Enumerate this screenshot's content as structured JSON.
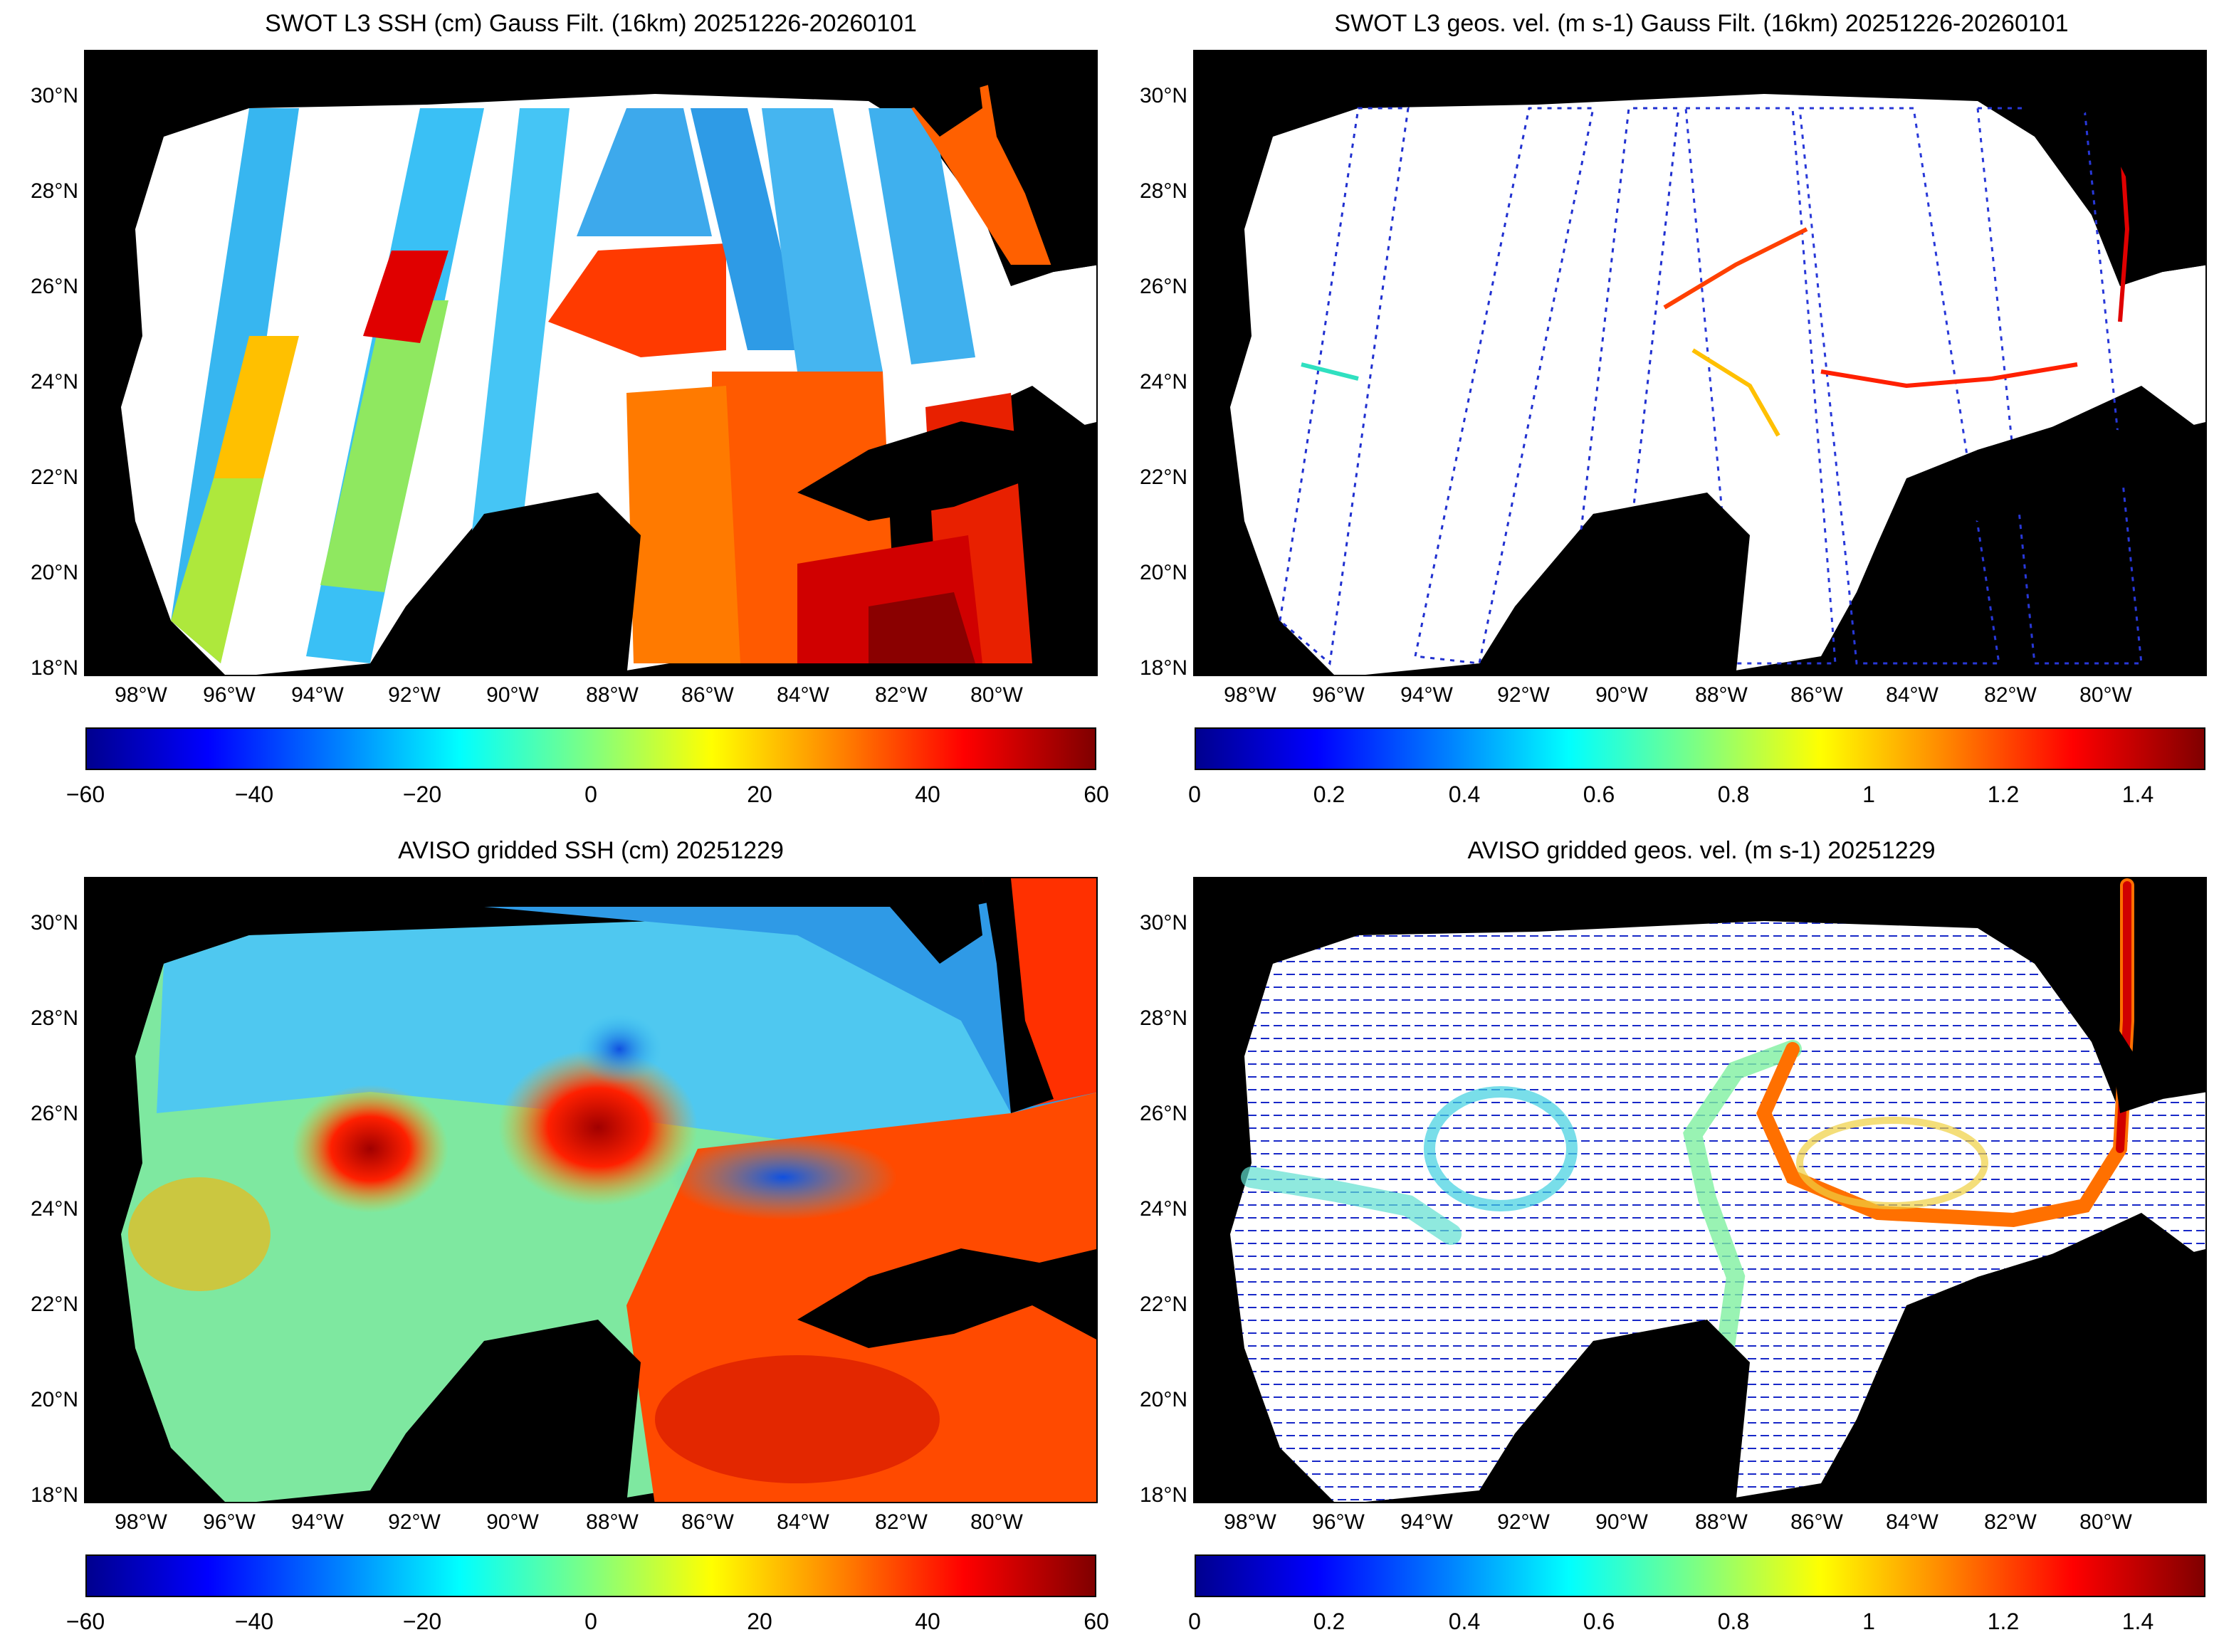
{
  "panels": [
    {
      "id": "swot-ssh",
      "title": "SWOT L3 SSH (cm) Gauss Filt. (16km) 20251226-20260101",
      "colorbar_ticks": [
        "−60",
        "−40",
        "−20",
        "0",
        "20",
        "40",
        "60"
      ]
    },
    {
      "id": "swot-vel",
      "title": "SWOT L3 geos. vel. (m s-1) Gauss Filt. (16km) 20251226-20260101",
      "colorbar_ticks": [
        "0",
        "0.2",
        "0.4",
        "0.6",
        "0.8",
        "1",
        "1.2",
        "1.4"
      ]
    },
    {
      "id": "aviso-ssh",
      "title": "AVISO gridded SSH (cm) 20251229",
      "colorbar_ticks": [
        "−60",
        "−40",
        "−20",
        "0",
        "20",
        "40",
        "60"
      ]
    },
    {
      "id": "aviso-vel",
      "title": "AVISO gridded geos. vel. (m s-1)  20251229",
      "colorbar_ticks": [
        "0",
        "0.2",
        "0.4",
        "0.6",
        "0.8",
        "1",
        "1.2",
        "1.4"
      ]
    }
  ],
  "lat_labels": [
    "30°N",
    "28°N",
    "26°N",
    "24°N",
    "22°N",
    "20°N",
    "18°N"
  ],
  "lon_labels": [
    "98°W",
    "96°W",
    "94°W",
    "92°W",
    "90°W",
    "88°W",
    "86°W",
    "84°W",
    "82°W",
    "80°W"
  ],
  "colors": {
    "land": "#000000",
    "gap": "#ffffff"
  }
}
